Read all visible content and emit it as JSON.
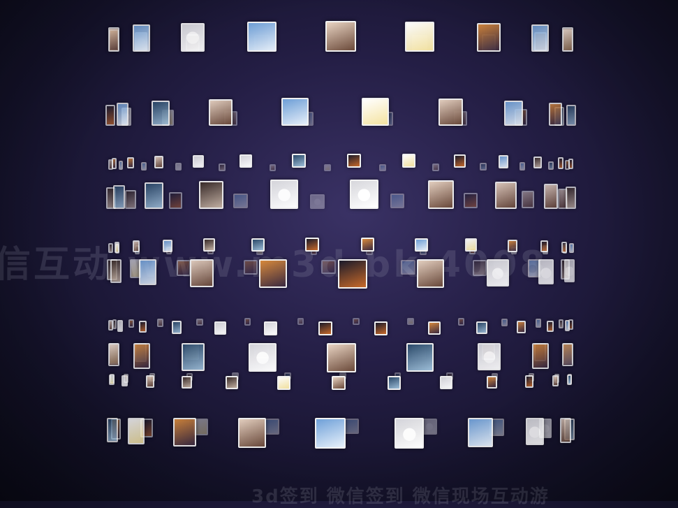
{
  "scene": {
    "type": "3d-photo-wall-cylinder",
    "watermark_text": "信互动  www.m3d.bk  4008",
    "caption_text": "3d签到   微信签到   微信现场互动游",
    "palettes": {
      "sunset": [
        "#d98a3c",
        "#3b2a40"
      ],
      "sky": [
        "#6fa0d8",
        "#e8f1fb"
      ],
      "night": [
        "#1a1a2a",
        "#c86a2a"
      ],
      "portrait": [
        "#e8d3c2",
        "#6b4a3a"
      ],
      "cartoon": [
        "#ffffff",
        "#f4e3a0"
      ],
      "avatar": [
        "#d7d7dc",
        "#ffffff"
      ],
      "dog": [
        "#3a2c28",
        "#c9b6a6"
      ],
      "sea": [
        "#2b4a6a",
        "#9fc0da"
      ]
    }
  }
}
